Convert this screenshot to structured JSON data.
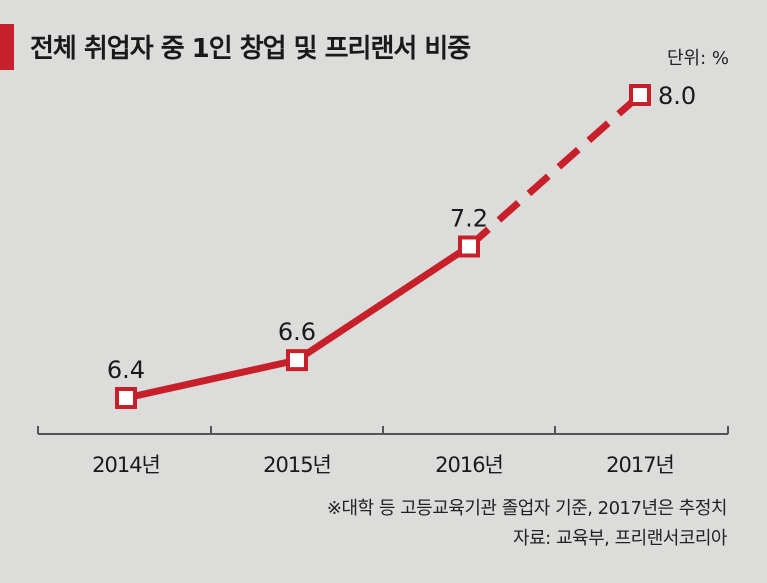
{
  "header": {
    "title": "전체 취업자 중 1인 창업 및 프리랜서 비중",
    "unit": "단위: %"
  },
  "notes": {
    "criteria": "※대학 등 고등교육기관 졸업자 기준, 2017년은 추정치",
    "source": "자료: 교육부, 프리랜서코리아"
  },
  "colors": {
    "accent": "#c8202a",
    "background": "#dcdcdb",
    "marker_fill": "#ffffff",
    "axis": "#555555"
  },
  "chart_data": {
    "type": "line",
    "title": "전체 취업자 중 1인 창업 및 프리랜서 비중",
    "categories": [
      "2014년",
      "2015년",
      "2016년",
      "2017년"
    ],
    "values": [
      6.4,
      6.6,
      7.2,
      8.0
    ],
    "value_labels": [
      "6.4",
      "6.6",
      "7.2",
      "8.0"
    ],
    "estimated": [
      false,
      false,
      false,
      true
    ],
    "ylim": [
      5.8,
      8.2
    ],
    "grid": false,
    "legend": "none"
  }
}
